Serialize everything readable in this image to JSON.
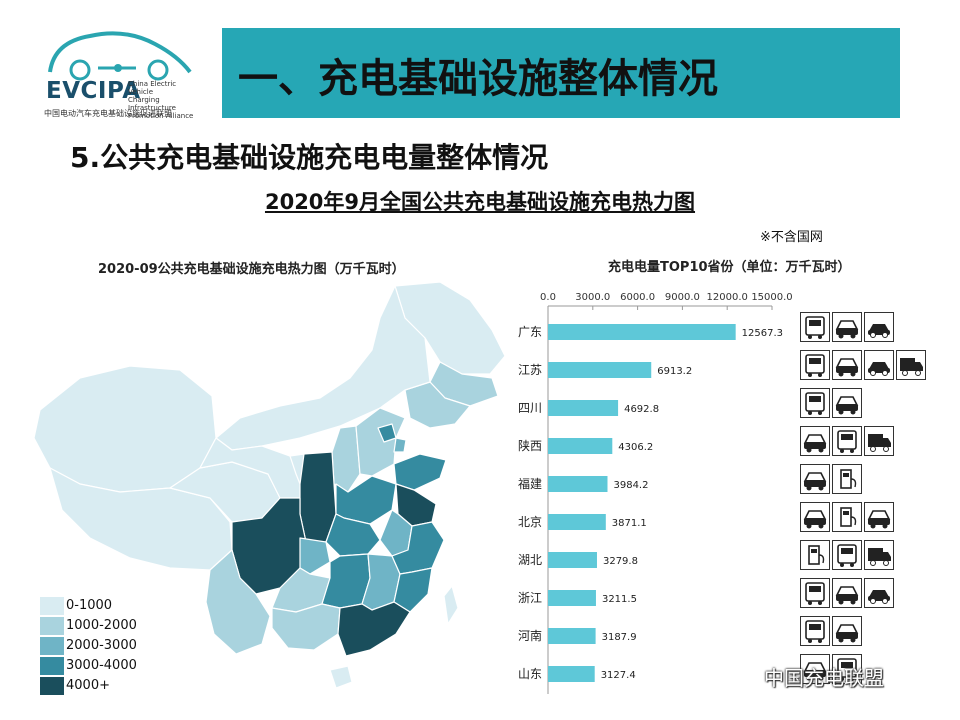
{
  "logo": {
    "text": "EVCIPA",
    "english": "China Electric Vehicle\nCharging Infrastructure\nPromotion Alliance",
    "chinese": "中国电动汽车充电基础设施促进联盟"
  },
  "header": {
    "title": "一、充电基础设施整体情况",
    "banner_color": "#26a7b5"
  },
  "section": {
    "subtitle": "5.公共充电基础设施充电电量整体情况",
    "chart_title": "2020年9月全国公共充电基础设施充电热力图",
    "note": "※不含国网"
  },
  "chart_data": [
    {
      "type": "heatmap",
      "title": "2020-09公共充电基础设施充电热力图（万千瓦时）",
      "legend": {
        "placement": "bottom-left",
        "entries": [
          {
            "label": "0-1000",
            "color": "#d9ecf2"
          },
          {
            "label": "1000-2000",
            "color": "#a9d3de"
          },
          {
            "label": "2000-3000",
            "color": "#6fb4c6"
          },
          {
            "label": "3000-4000",
            "color": "#358ba0"
          },
          {
            "label": "4000+",
            "color": "#1a4e5c"
          }
        ]
      }
    },
    {
      "type": "bar",
      "orientation": "horizontal",
      "title": "充电电量TOP10省份（单位：万千瓦时）",
      "categories": [
        "广东",
        "江苏",
        "四川",
        "陕西",
        "福建",
        "北京",
        "湖北",
        "浙江",
        "河南",
        "山东"
      ],
      "values": [
        12567.3,
        6913.2,
        4692.8,
        4306.2,
        3984.2,
        3871.1,
        3279.8,
        3211.5,
        3187.9,
        3127.4
      ],
      "value_labels": [
        "12567.3",
        "6913.2",
        "4692.8",
        "4306.2",
        "3984.2",
        "3871.1",
        "3279.8",
        "3211.5",
        "3187.9",
        "3127.4"
      ],
      "xlim": [
        0,
        15000
      ],
      "xticks": [
        0,
        3000,
        6000,
        9000,
        12000,
        15000
      ],
      "xtick_labels": [
        "0.0",
        "3000.0",
        "6000.0",
        "9000.0",
        "12000.0",
        "15000.0"
      ],
      "axis_position": "top",
      "bar_color": "#5ec8d8"
    }
  ],
  "vehicle_icons": [
    [
      "bus-icon",
      "taxi-icon",
      "car-icon"
    ],
    [
      "bus-icon",
      "taxi-icon",
      "car-icon",
      "truck-icon"
    ],
    [
      "bus-icon",
      "taxi-icon"
    ],
    [
      "taxi-icon",
      "bus-icon",
      "truck-icon"
    ],
    [
      "taxi-icon",
      "charger-icon"
    ],
    [
      "taxi-icon",
      "charger-icon",
      "taxi-icon"
    ],
    [
      "charger-icon",
      "bus-icon",
      "truck-icon"
    ],
    [
      "bus-icon",
      "taxi-icon",
      "car-icon"
    ],
    [
      "bus-icon",
      "taxi-icon"
    ],
    [
      "taxi-icon",
      "bus-icon"
    ]
  ],
  "watermark": "中国充电联盟"
}
